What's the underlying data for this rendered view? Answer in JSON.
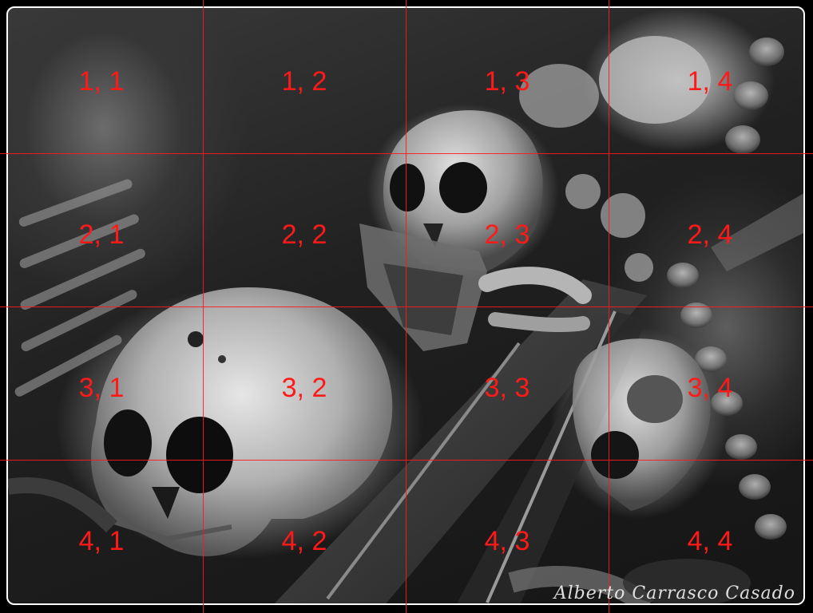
{
  "photo": {
    "description_icon": "ossuary-skulls-photo",
    "watermark": "Alberto Carrasco Casado"
  },
  "grid": {
    "color": "#ff1a1a",
    "rows": 4,
    "cols": 4,
    "labels": [
      [
        "1, 1",
        "1, 2",
        "1, 3",
        "1, 4"
      ],
      [
        "2, 1",
        "2, 2",
        "2, 3",
        "2, 4"
      ],
      [
        "3, 1",
        "3, 2",
        "3, 3",
        "3, 4"
      ],
      [
        "4, 1",
        "4, 2",
        "4, 3",
        "4, 4"
      ]
    ]
  }
}
